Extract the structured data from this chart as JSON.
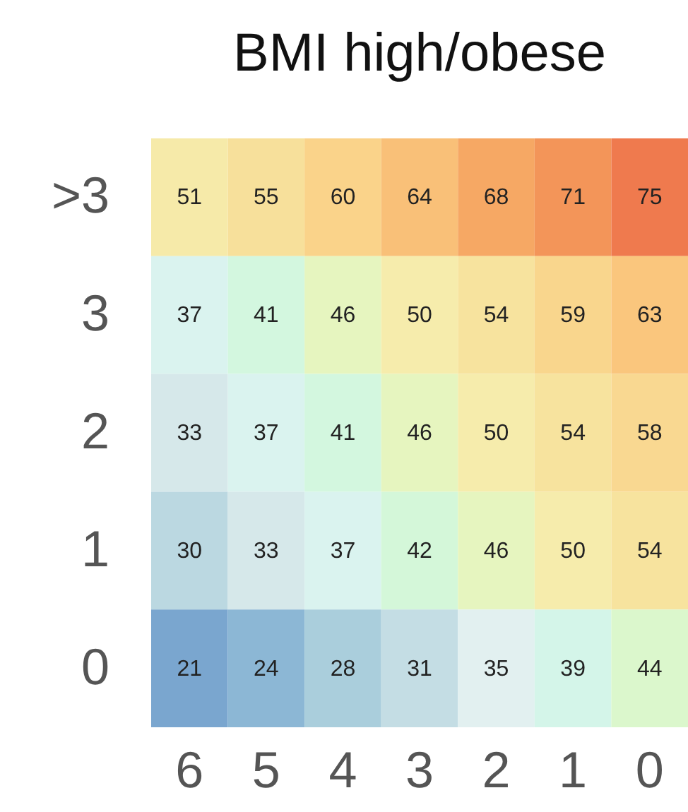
{
  "chart_data": {
    "type": "heatmap",
    "data_labels": true,
    "title": "BMI high/obese",
    "categories": [
      "6",
      "5",
      "4",
      "3",
      "2",
      "1",
      "0"
    ],
    "y_categories": [
      ">3",
      "3",
      "2",
      "1",
      "0"
    ],
    "cells": [
      [
        51,
        55,
        60,
        64,
        68,
        71,
        75
      ],
      [
        37,
        41,
        46,
        50,
        54,
        59,
        63
      ],
      [
        33,
        37,
        41,
        46,
        50,
        54,
        58
      ],
      [
        30,
        33,
        37,
        42,
        46,
        50,
        54
      ],
      [
        21,
        24,
        28,
        31,
        35,
        39,
        44
      ]
    ]
  }
}
